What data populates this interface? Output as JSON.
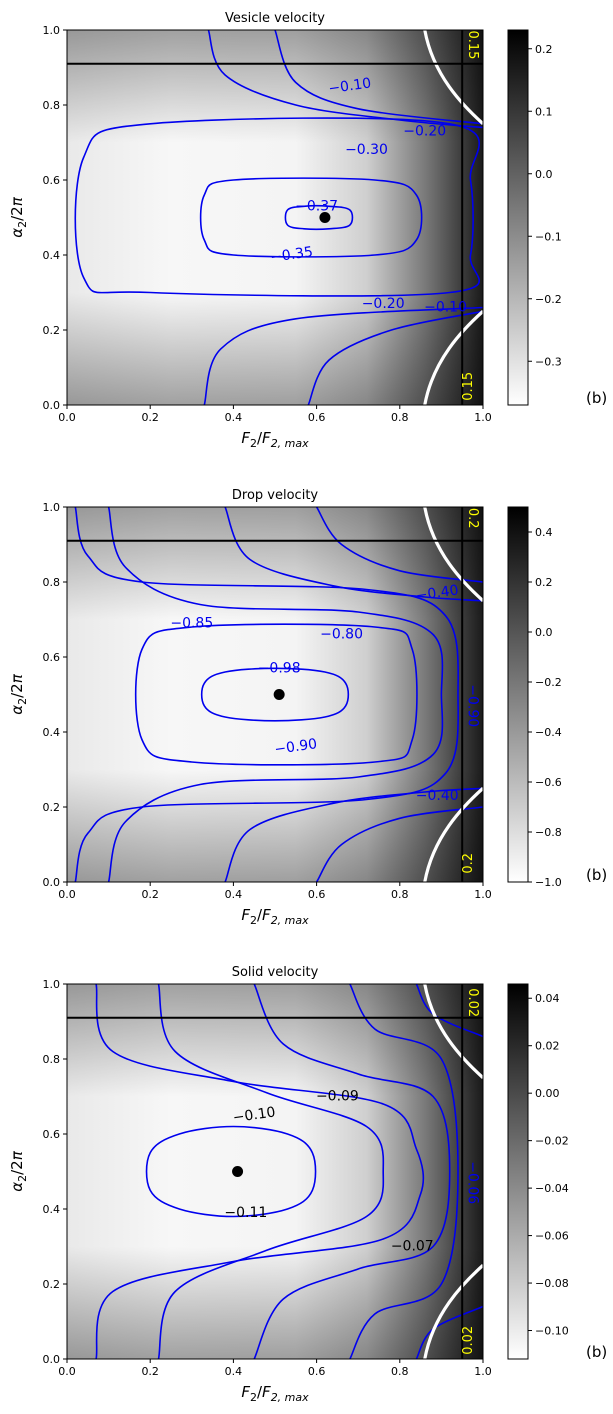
{
  "panel_label": "(b)",
  "colors": {
    "contour": "#0000ee",
    "contour_label_dark": "#000000",
    "boundary": "#ffffff",
    "line": "#000000",
    "corner_label": "#ffff00",
    "marker": "#000000"
  },
  "chart_data": [
    {
      "type": "heatmap",
      "title": "Vesicle velocity",
      "xlabel": "F2/F2,max",
      "ylabel": "α2/2π",
      "xlim": [
        0.0,
        1.0
      ],
      "ylim": [
        0.0,
        1.0
      ],
      "xticks": [
        "0.0",
        "0.2",
        "0.4",
        "0.6",
        "0.8",
        "1.0"
      ],
      "yticks": [
        "0.0",
        "0.2",
        "0.4",
        "0.6",
        "0.8",
        "1.0"
      ],
      "colorbar": {
        "min": -0.37,
        "max": 0.23,
        "ticks": [
          0.2,
          0.1,
          0.0,
          -0.1,
          -0.2,
          -0.3
        ],
        "tick_labels": [
          "0.2",
          "0.1",
          "0.0",
          "−0.1",
          "−0.2",
          "−0.3"
        ]
      },
      "minimum_point": {
        "x": 0.62,
        "y": 0.5
      },
      "vertical_line_x": 0.95,
      "horizontal_line_y": 0.91,
      "contour_labels": [
        {
          "text": "−0.37",
          "x": 0.6,
          "y": 0.53
        },
        {
          "text": "−0.35",
          "x": 0.54,
          "y": 0.4
        },
        {
          "text": "−0.30",
          "x": 0.72,
          "y": 0.68
        },
        {
          "text": "−0.20",
          "x": 0.86,
          "y": 0.73
        },
        {
          "text": "−0.10",
          "x": 0.68,
          "y": 0.85
        },
        {
          "text": "−0.20",
          "x": 0.76,
          "y": 0.27
        },
        {
          "text": "−0.10",
          "x": 0.91,
          "y": 0.26
        }
      ],
      "corner_labels": [
        {
          "text": "0.15",
          "x": 0.975,
          "y": 0.96
        },
        {
          "text": "0.15",
          "x": 0.965,
          "y": 0.05
        }
      ]
    },
    {
      "type": "heatmap",
      "title": "Drop velocity",
      "xlabel": "F2/F2,max",
      "ylabel": "α2/2π",
      "xlim": [
        0.0,
        1.0
      ],
      "ylim": [
        0.0,
        1.0
      ],
      "xticks": [
        "0.0",
        "0.2",
        "0.4",
        "0.6",
        "0.8",
        "1.0"
      ],
      "yticks": [
        "0.0",
        "0.2",
        "0.4",
        "0.6",
        "0.8",
        "1.0"
      ],
      "colorbar": {
        "min": -1.0,
        "max": 0.5,
        "ticks": [
          0.4,
          0.2,
          0.0,
          -0.2,
          -0.4,
          -0.6,
          -0.8,
          -1.0
        ],
        "tick_labels": [
          "0.4",
          "0.2",
          "0.0",
          "−0.2",
          "−0.4",
          "−0.6",
          "−0.8",
          "−1.0"
        ]
      },
      "minimum_point": {
        "x": 0.51,
        "y": 0.5
      },
      "vertical_line_x": 0.95,
      "horizontal_line_y": 0.91,
      "contour_labels": [
        {
          "text": "−0.98",
          "x": 0.51,
          "y": 0.57
        },
        {
          "text": "−0.90",
          "x": 0.55,
          "y": 0.36
        },
        {
          "text": "−0.85",
          "x": 0.3,
          "y": 0.69
        },
        {
          "text": "−0.80",
          "x": 0.66,
          "y": 0.66
        },
        {
          "text": "−0.40",
          "x": 0.89,
          "y": 0.77
        },
        {
          "text": "−0.40",
          "x": 0.89,
          "y": 0.23
        },
        {
          "text": "−0.90",
          "x": 0.975,
          "y": 0.47
        }
      ],
      "corner_labels": [
        {
          "text": "0.2",
          "x": 0.975,
          "y": 0.97
        },
        {
          "text": "0.2",
          "x": 0.965,
          "y": 0.05
        }
      ]
    },
    {
      "type": "heatmap",
      "title": "Solid velocity",
      "xlabel": "F2/F2,max",
      "ylabel": "α2/2π",
      "xlim": [
        0.0,
        1.0
      ],
      "ylim": [
        0.0,
        1.0
      ],
      "xticks": [
        "0.0",
        "0.2",
        "0.4",
        "0.6",
        "0.8",
        "1.0"
      ],
      "yticks": [
        "0.0",
        "0.2",
        "0.4",
        "0.6",
        "0.8",
        "1.0"
      ],
      "colorbar": {
        "min": -0.112,
        "max": 0.046,
        "ticks": [
          0.04,
          0.02,
          0.0,
          -0.02,
          -0.04,
          -0.06,
          -0.08,
          -0.1
        ],
        "tick_labels": [
          "0.04",
          "0.02",
          "0.00",
          "−0.02",
          "−0.04",
          "−0.06",
          "−0.08",
          "−0.10"
        ]
      },
      "minimum_point": {
        "x": 0.41,
        "y": 0.5
      },
      "vertical_line_x": 0.95,
      "horizontal_line_y": 0.91,
      "contour_labels": [
        {
          "text": "−0.11",
          "x": 0.43,
          "y": 0.39
        },
        {
          "text": "−0.10",
          "x": 0.45,
          "y": 0.65
        },
        {
          "text": "−0.09",
          "x": 0.65,
          "y": 0.7
        },
        {
          "text": "−0.07",
          "x": 0.83,
          "y": 0.3
        },
        {
          "text": "−0.06",
          "x": 0.975,
          "y": 0.47
        }
      ],
      "corner_labels": [
        {
          "text": "0.02",
          "x": 0.975,
          "y": 0.95
        },
        {
          "text": "0.02",
          "x": 0.965,
          "y": 0.05
        }
      ]
    }
  ]
}
